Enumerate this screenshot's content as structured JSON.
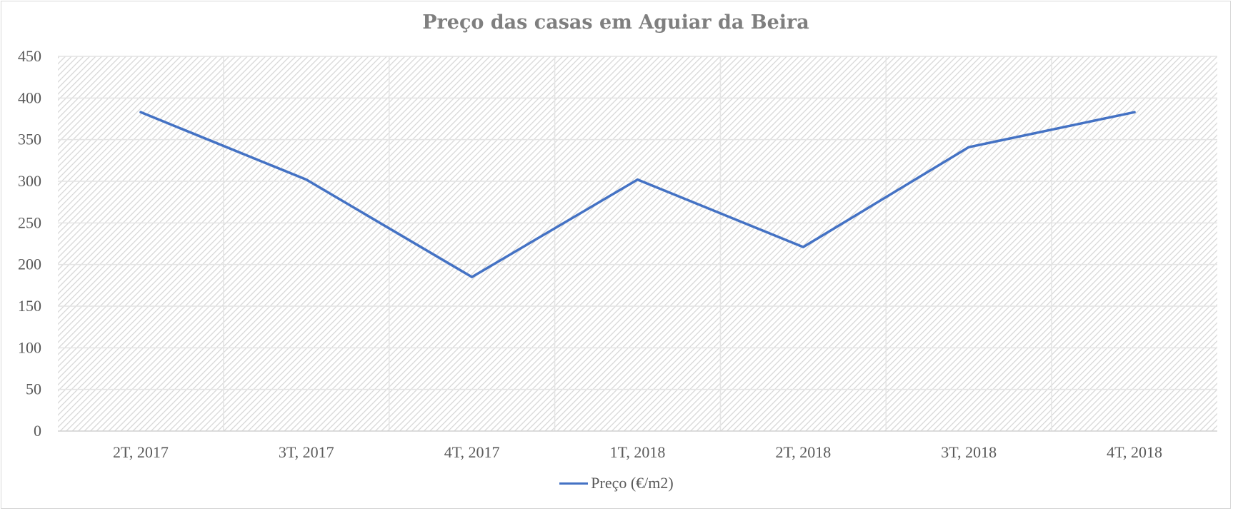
{
  "chart_data": {
    "type": "line",
    "title": "Preço das casas em Aguiar da Beira",
    "categories": [
      "2T, 2017",
      "3T, 2017",
      "4T, 2017",
      "1T, 2018",
      "2T, 2018",
      "3T, 2018",
      "4T, 2018"
    ],
    "series": [
      {
        "name": "Preço (€/m2)",
        "values": [
          383,
          302,
          185,
          302,
          221,
          341,
          383
        ],
        "color": "#4472c4"
      }
    ],
    "ylim": [
      0,
      450
    ],
    "yticks": [
      "0",
      "50",
      "100",
      "150",
      "200",
      "250",
      "300",
      "350",
      "400",
      "450"
    ],
    "grid": true,
    "legend_position": "bottom"
  }
}
